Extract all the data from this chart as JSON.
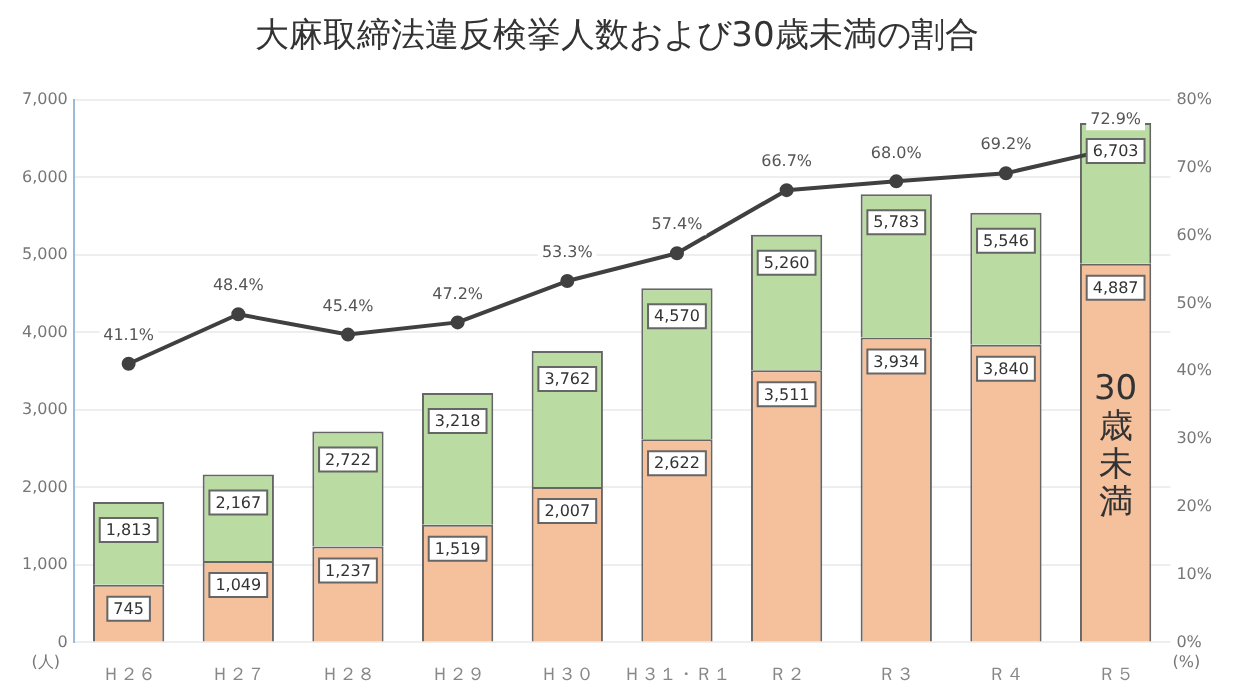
{
  "chart_data": {
    "type": "bar",
    "title": "大麻取締法違反検挙人数および30歳未満の割合",
    "ylabel": "(人)",
    "y2label": "(%)",
    "categories": [
      "Ｈ２６",
      "Ｈ２７",
      "Ｈ２８",
      "Ｈ２９",
      "Ｈ３０",
      "Ｈ３１・Ｒ１",
      "Ｒ２",
      "Ｒ３",
      "Ｒ４",
      "Ｒ５"
    ],
    "stacked": true,
    "series": [
      {
        "color": "#f5c09c",
        "values": [
          745,
          1049,
          1237,
          1519,
          2007,
          2622,
          3511,
          3934,
          3840,
          4887
        ],
        "value_labels": [
          "745",
          "1,049",
          "1,237",
          "1,519",
          "2,007",
          "2,622",
          "3,511",
          "3,934",
          "3,840",
          "4,887"
        ]
      },
      {
        "color": "#badba2",
        "values": [
          1068,
          1118,
          1485,
          1699,
          1755,
          1948,
          1749,
          1849,
          1706,
          1816
        ]
      },
      {
        "type": "line",
        "axis": "y2",
        "color": "#404040",
        "values": [
          41.1,
          48.4,
          45.4,
          47.2,
          53.3,
          57.4,
          66.7,
          68.0,
          69.2,
          72.9
        ],
        "value_labels": [
          "41.1%",
          "48.4%",
          "45.4%",
          "47.2%",
          "53.3%",
          "57.4%",
          "66.7%",
          "68.0%",
          "69.2%",
          "72.9%"
        ]
      }
    ],
    "totals": [
      "1,813",
      "2,167",
      "2,722",
      "3,218",
      "3,762",
      "4,570",
      "5,260",
      "5,783",
      "5,546",
      "6,703"
    ],
    "ylim": [
      0,
      7000
    ],
    "yticks": [
      0,
      {
        "value": 1000,
        "label": "1,000"
      },
      {
        "value": 2000,
        "label": "2,000"
      },
      {
        "value": 3000,
        "label": "3,000"
      },
      {
        "value": 4000,
        "label": "4,000"
      },
      {
        "value": 5000,
        "label": "5,000"
      },
      {
        "value": 6000,
        "label": "6,000"
      },
      {
        "value": 7000,
        "label": "7,000"
      }
    ],
    "y2lim": [
      0,
      80
    ],
    "y2ticks": [
      {
        "value": 0,
        "label": "0%"
      },
      {
        "value": 10,
        "label": "10%"
      },
      {
        "value": 20,
        "label": "20%"
      },
      {
        "value": 30,
        "label": "30%"
      },
      {
        "value": 40,
        "label": "40%"
      },
      {
        "value": 50,
        "label": "50%"
      },
      {
        "value": 60,
        "label": "60%"
      },
      {
        "value": 70,
        "label": "70%"
      },
      {
        "value": 80,
        "label": "80%"
      }
    ],
    "grid": "y",
    "legend": false,
    "marker": "circle",
    "line_style": "solid",
    "annotations": [
      "30歳未満"
    ]
  }
}
